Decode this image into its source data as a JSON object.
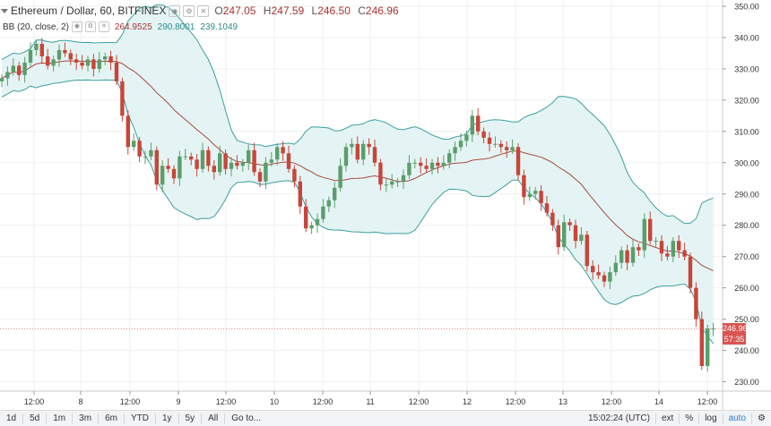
{
  "legend": {
    "symbol": "Ethereum / Dollar, 60, BITFINEX",
    "o_label": "O",
    "o": "247.05",
    "h_label": "H",
    "h": "247.59",
    "l_label": "L",
    "l": "246.50",
    "c_label": "C",
    "c": "246.96"
  },
  "indicator": {
    "name": "BB (20, close, 2)",
    "basis": "264.9525",
    "upper": "290.8001",
    "lower": "239.1049"
  },
  "price_tags": {
    "last": "246.96",
    "countdown": "57:35"
  },
  "colors": {
    "up": "#5b9e6c",
    "down": "#c8453a",
    "band_fill": "#e4f4f4",
    "band_line": "#3f9e9e",
    "basis_line": "#a84a3f",
    "last_line": "#d9534f"
  },
  "toolbar": {
    "ranges": [
      "1d",
      "5d",
      "1m",
      "3m",
      "6m",
      "YTD",
      "1y",
      "5y",
      "All"
    ],
    "goto": "Go to...",
    "time": "15:02:24 (UTC)",
    "ext": "ext",
    "pct": "%",
    "log": "log",
    "auto": "auto",
    "settings_icon": "gear-icon"
  },
  "chart_data": {
    "type": "candlestick",
    "title": "Ethereum / Dollar, 60, BITFINEX",
    "y_ticks": [
      "350.00",
      "340.00",
      "330.00",
      "320.00",
      "310.00",
      "300.00",
      "290.00",
      "280.00",
      "270.00",
      "260.00",
      "250.00",
      "240.00",
      "230.00"
    ],
    "ylim": [
      227,
      352
    ],
    "x_ticks": [
      "12:00",
      "8",
      "12:00",
      "9",
      "12:00",
      "10",
      "12:00",
      "11",
      "12:00",
      "12",
      "12:00",
      "13",
      "12:00",
      "14",
      "12:00"
    ],
    "grid": true,
    "close": [
      327,
      329,
      331,
      328,
      332,
      336,
      338,
      334,
      331,
      333,
      336,
      335,
      333,
      332,
      331,
      333,
      330,
      333,
      334,
      332,
      326,
      315,
      305,
      307,
      302,
      302,
      304,
      293,
      299,
      298,
      295,
      302,
      302,
      301,
      298,
      304,
      299,
      297,
      303,
      298,
      300,
      299,
      300,
      304,
      297,
      294,
      300,
      301,
      305,
      303,
      298,
      294,
      286,
      279,
      280,
      282,
      286,
      288,
      292,
      299,
      305,
      306,
      301,
      306,
      305,
      300,
      293,
      293,
      294,
      294,
      296,
      300,
      300,
      299,
      298,
      300,
      299,
      300,
      303,
      305,
      307,
      309,
      315,
      310,
      308,
      306,
      306,
      305,
      304,
      305,
      296,
      289,
      290,
      291,
      287,
      284,
      280,
      273,
      281,
      280,
      275,
      277,
      267,
      265,
      264,
      262,
      265,
      268,
      272,
      268,
      273,
      272,
      282,
      275,
      275,
      271,
      270,
      275,
      272,
      270,
      260,
      250,
      235,
      247,
      247
    ]
  }
}
